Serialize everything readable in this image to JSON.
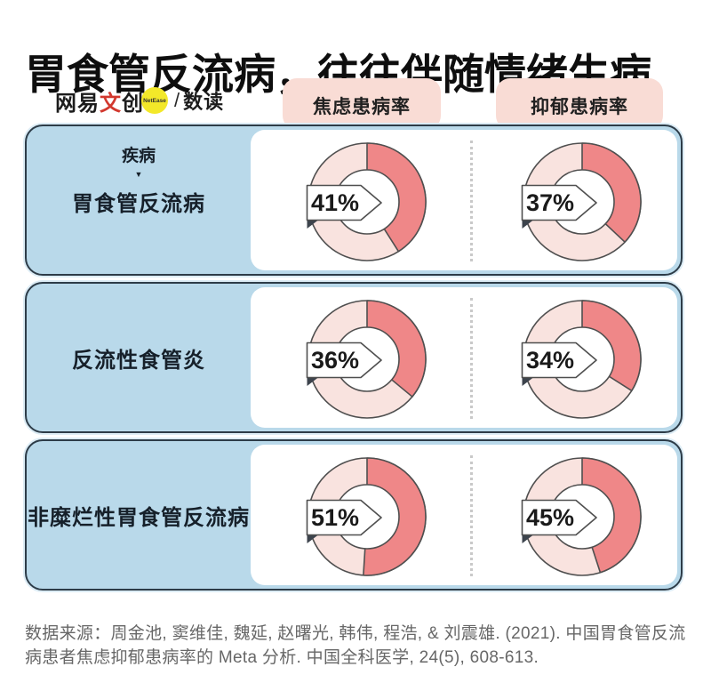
{
  "title": "胃食管反流病，往往伴随情绪生病",
  "logo": {
    "brand_prefix": "网易",
    "brand_red": "文",
    "brand_suffix": "创",
    "badge": "NetEase",
    "slash": "/",
    "sub_brand": "数读"
  },
  "columns": {
    "anxiety": "焦虑患病率",
    "depression": "抑郁患病率"
  },
  "rows": [
    {
      "header_small": "疾病",
      "header_arrow": "▼",
      "label": "胃食管反流病",
      "anxiety_pct": 41,
      "anxiety_label": "41%",
      "depression_pct": 37,
      "depression_label": "37%"
    },
    {
      "label": "反流性食管炎",
      "anxiety_pct": 36,
      "anxiety_label": "36%",
      "depression_pct": 34,
      "depression_label": "34%"
    },
    {
      "label": "非糜烂性胃食管反流病",
      "anxiety_pct": 51,
      "anxiety_label": "51%",
      "depression_pct": 45,
      "depression_label": "45%"
    }
  ],
  "source": "数据来源：周金池, 窦维佳, 魏延, 赵曙光, 韩伟, 程浩, & 刘震雄. (2021). 中国胃食管反流病患者焦虑抑郁患病率的 Meta 分析. 中国全科医学, 24(5), 608-613.",
  "colors": {
    "ring_dark": "#ef8788",
    "ring_light": "#f9e3df",
    "outline": "#4f4f4f",
    "card_bg": "#b9d9ea",
    "card_border": "#2d3c48",
    "pill_bg": "#f9dcd5",
    "badge_yellow": "#f3e829",
    "brand_red": "#d2382e"
  },
  "chart_data": {
    "type": "pie",
    "subtype": "donut-grid",
    "title": "胃食管反流病，往往伴随情绪生病",
    "categories": [
      "胃食管反流病",
      "反流性食管炎",
      "非糜烂性胃食管反流病"
    ],
    "series": [
      {
        "name": "焦虑患病率",
        "values": [
          41,
          36,
          51
        ]
      },
      {
        "name": "抑郁患病率",
        "values": [
          37,
          34,
          45
        ]
      }
    ],
    "unit": "%",
    "value_range": [
      0,
      100
    ],
    "legend_position": "top",
    "source": "周金池, 窦维佳, 魏延, 赵曙光, 韩伟, 程浩, & 刘震雄. (2021). 中国胃食管反流病患者焦虑抑郁患病率的 Meta 分析. 中国全科医学, 24(5), 608-613."
  }
}
